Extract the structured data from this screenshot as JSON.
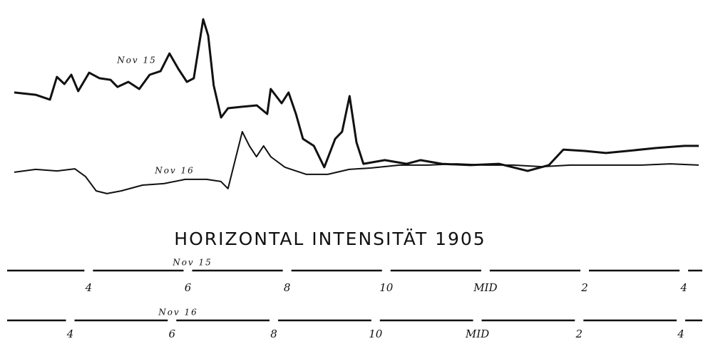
{
  "chart_data": {
    "type": "line",
    "title": "HORIZONTAL INTENSITÄT 1905",
    "ylim": [
      0,
      100
    ],
    "time_axes": [
      {
        "label": "Nov 15",
        "xlim": [
          14.5,
          28.3
        ],
        "xticks": [
          {
            "value": 16,
            "label": "4"
          },
          {
            "value": 18,
            "label": "6"
          },
          {
            "value": 20,
            "label": "8"
          },
          {
            "value": 22,
            "label": "10"
          },
          {
            "value": 24,
            "label": "MID"
          },
          {
            "value": 26,
            "label": "2"
          },
          {
            "value": 28,
            "label": "4"
          }
        ]
      },
      {
        "label": "Nov 16",
        "xlim": [
          14.9,
          28.35
        ],
        "xticks": [
          {
            "value": 16,
            "label": "4"
          },
          {
            "value": 18,
            "label": "6"
          },
          {
            "value": 20,
            "label": "8"
          },
          {
            "value": 22,
            "label": "10"
          },
          {
            "value": 24,
            "label": "MID"
          },
          {
            "value": 26,
            "label": "2"
          },
          {
            "value": 28,
            "label": "4"
          }
        ]
      }
    ],
    "series": [
      {
        "name": "Nov 15",
        "color": "#111111",
        "axis": 0,
        "x": [
          14.5,
          14.93,
          15.22,
          15.36,
          15.51,
          15.65,
          15.79,
          16.01,
          16.22,
          16.44,
          16.58,
          16.8,
          17.02,
          17.23,
          17.45,
          17.63,
          17.81,
          17.98,
          18.12,
          18.31,
          18.41,
          18.52,
          18.67,
          18.81,
          19.1,
          19.39,
          19.6,
          19.67,
          19.89,
          20.03,
          20.18,
          20.32,
          20.54,
          20.75,
          20.97,
          21.11,
          21.26,
          21.4,
          21.54,
          21.97,
          22.41,
          22.69,
          23.12,
          23.7,
          24.27,
          24.85,
          25.28,
          25.57,
          26.0,
          26.43,
          26.86,
          27.44,
          28.01,
          28.3
        ],
        "values": [
          59.3,
          58.1,
          55.6,
          67.4,
          63.7,
          68.5,
          60,
          69.6,
          66.7,
          65.9,
          62.2,
          64.8,
          61.1,
          68.5,
          70.4,
          79.6,
          71.5,
          64.8,
          66.7,
          97.4,
          88.9,
          63,
          46.3,
          51.1,
          51.9,
          52.6,
          48.1,
          61.1,
          53.7,
          59.3,
          48.1,
          35.2,
          31.5,
          20.4,
          35.2,
          38.9,
          57.4,
          33.3,
          22.2,
          24.1,
          22.2,
          24.1,
          22.2,
          21.5,
          22.2,
          18.5,
          21.5,
          29.6,
          28.9,
          27.8,
          28.9,
          30.4,
          31.5,
          31.5
        ]
      },
      {
        "name": "Nov 16",
        "color": "#111111",
        "axis": 1,
        "x": [
          14.9,
          15.32,
          15.74,
          16.09,
          16.3,
          16.51,
          16.72,
          17.0,
          17.42,
          17.84,
          18.26,
          18.68,
          18.96,
          19.1,
          19.24,
          19.38,
          19.52,
          19.66,
          19.8,
          19.94,
          20.22,
          20.64,
          21.06,
          21.48,
          21.9,
          22.47,
          23.03,
          23.59,
          24.15,
          24.71,
          25.27,
          25.83,
          26.53,
          27.23,
          27.79,
          28.35
        ],
        "values": [
          17.8,
          19.3,
          18.5,
          19.6,
          15.6,
          8.1,
          6.7,
          8.1,
          11.1,
          11.9,
          14.1,
          14.1,
          13,
          9.3,
          24.1,
          38.9,
          31.5,
          25.9,
          31.5,
          25.9,
          20.4,
          16.7,
          16.7,
          19.3,
          20,
          21.5,
          21.5,
          22.2,
          21.5,
          21.5,
          20.7,
          21.5,
          21.5,
          21.5,
          22.2,
          21.5
        ]
      }
    ]
  }
}
